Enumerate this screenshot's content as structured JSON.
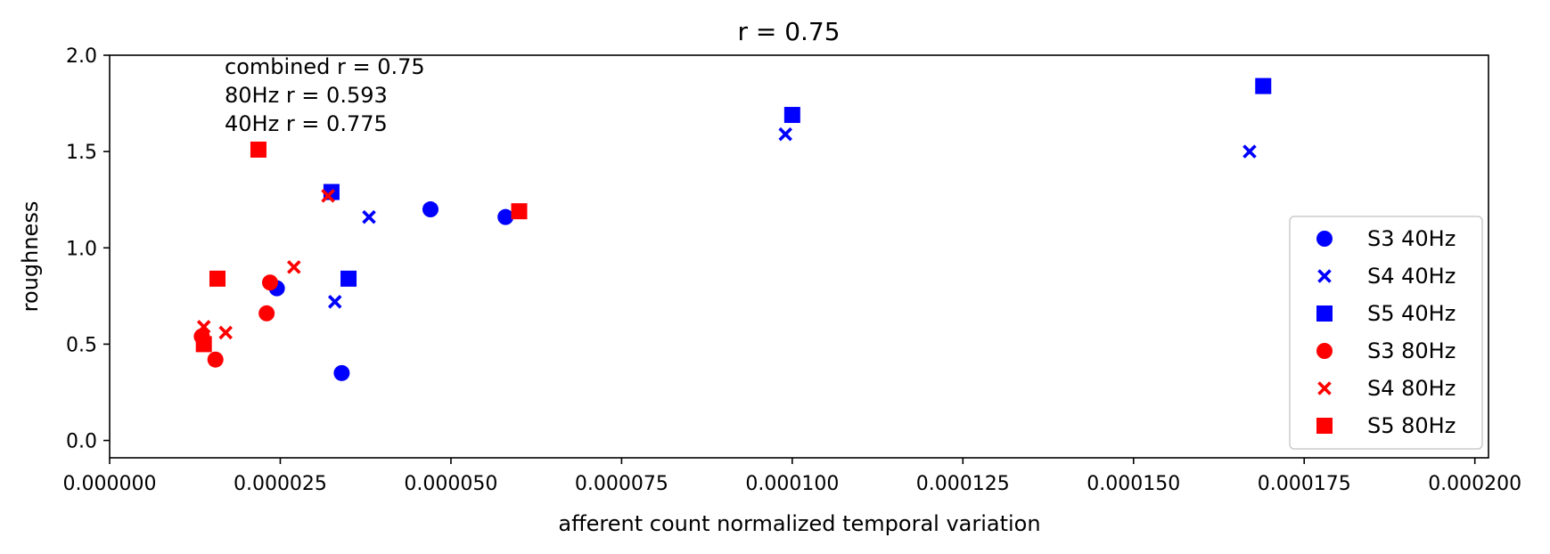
{
  "chart_data": {
    "type": "scatter",
    "title": "r = 0.75",
    "xlabel": "afferent count normalized temporal variation",
    "ylabel": "roughness",
    "xlim": [
      0,
      0.000202
    ],
    "ylim": [
      -0.09,
      2.0
    ],
    "xticks": [
      0,
      2.5e-05,
      5e-05,
      7.5e-05,
      0.0001,
      0.000125,
      0.00015,
      0.000175,
      0.0002
    ],
    "xtick_labels": [
      "0.000000",
      "0.000025",
      "0.000050",
      "0.000075",
      "0.000100",
      "0.000125",
      "0.000150",
      "0.000175",
      "0.000200"
    ],
    "yticks": [
      0,
      0.5,
      1.0,
      1.5,
      2.0
    ],
    "ytick_labels": [
      "0.0",
      "0.5",
      "1.0",
      "1.5",
      "2.0"
    ],
    "grid": false,
    "legend_position": "lower-right",
    "annotations": [
      "combined r = 0.75",
      "80Hz r = 0.593",
      "40Hz r = 0.775"
    ],
    "series": [
      {
        "name": "S3 40Hz",
        "marker": "circle",
        "color": "#0000ff",
        "points": [
          [
            2.45e-05,
            0.79
          ],
          [
            3.4e-05,
            0.35
          ],
          [
            4.7e-05,
            1.2
          ],
          [
            5.8e-05,
            1.16
          ]
        ]
      },
      {
        "name": "S4 40Hz",
        "marker": "x",
        "color": "#0000ff",
        "points": [
          [
            3.3e-05,
            0.72
          ],
          [
            3.8e-05,
            1.16
          ],
          [
            9.9e-05,
            1.59
          ],
          [
            0.000167,
            1.5
          ]
        ]
      },
      {
        "name": "S5 40Hz",
        "marker": "square",
        "color": "#0000ff",
        "points": [
          [
            3.25e-05,
            1.29
          ],
          [
            3.5e-05,
            0.84
          ],
          [
            0.0001,
            1.69
          ],
          [
            0.000169,
            1.84
          ]
        ]
      },
      {
        "name": "S3 80Hz",
        "marker": "circle",
        "color": "#ff0000",
        "points": [
          [
            1.35e-05,
            0.54
          ],
          [
            1.55e-05,
            0.42
          ],
          [
            2.3e-05,
            0.66
          ],
          [
            2.35e-05,
            0.82
          ]
        ]
      },
      {
        "name": "S4 80Hz",
        "marker": "x",
        "color": "#ff0000",
        "points": [
          [
            1.38e-05,
            0.59
          ],
          [
            1.7e-05,
            0.56
          ],
          [
            2.7e-05,
            0.9
          ],
          [
            3.2e-05,
            1.27
          ]
        ]
      },
      {
        "name": "S5 80Hz",
        "marker": "square",
        "color": "#ff0000",
        "points": [
          [
            1.38e-05,
            0.5
          ],
          [
            1.58e-05,
            0.84
          ],
          [
            2.18e-05,
            1.51
          ],
          [
            6e-05,
            1.19
          ]
        ]
      }
    ]
  }
}
